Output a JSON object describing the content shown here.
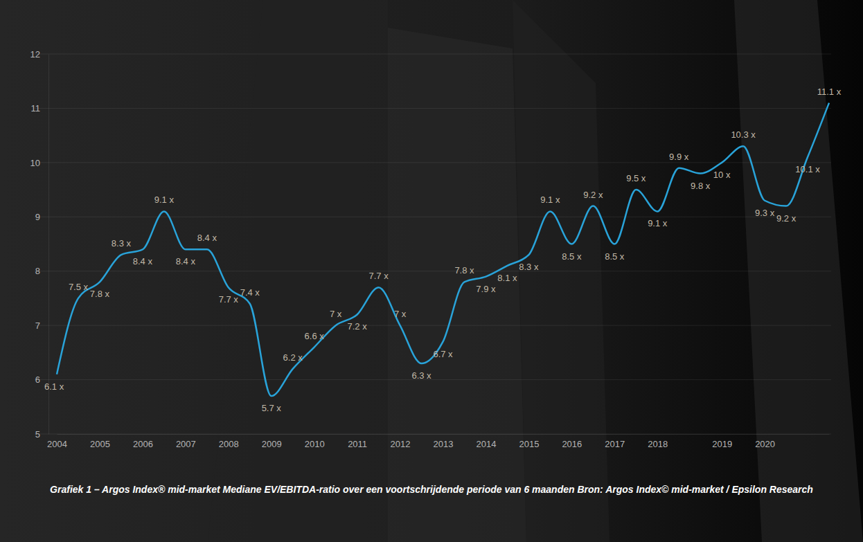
{
  "chart_data": {
    "type": "line",
    "title": "Grafiek 1 – Argos Index® mid-market Mediane EV/EBITDA-ratio over een voortschrijdende periode van 6 maanden Bron: Argos Index© mid-market / Epsilon Research",
    "categories": [
      "2004",
      null,
      "2005",
      null,
      "2006",
      null,
      "2007",
      null,
      "2008",
      null,
      "2009",
      null,
      "2010",
      null,
      "2011",
      null,
      "2012",
      null,
      "2013",
      null,
      "2014",
      null,
      "2015",
      null,
      "2016",
      null,
      "2017",
      null,
      "2018",
      null,
      null,
      "2019",
      null,
      "2020",
      null,
      null,
      null
    ],
    "values": [
      6.1,
      7.5,
      7.8,
      8.3,
      8.4,
      9.1,
      8.4,
      8.4,
      7.7,
      7.4,
      5.7,
      6.2,
      6.6,
      7,
      7.2,
      7.7,
      7,
      6.3,
      6.7,
      7.8,
      7.9,
      8.1,
      8.3,
      9.1,
      8.5,
      9.2,
      8.5,
      9.5,
      9.1,
      9.9,
      9.8,
      10,
      10.3,
      9.3,
      9.2,
      10.1,
      11.1
    ],
    "value_labels": [
      "6.1 x",
      "7.5 x",
      "7.8 x",
      "8.3 x",
      "8.4 x",
      "9.1 x",
      "8.4 x",
      "8.4 x",
      "7.7 x",
      "7.4 x",
      "5.7 x",
      "6.2 x",
      "6.6 x",
      "7 x",
      "7.2 x",
      "7.7 x",
      "7 x",
      "6.3 x",
      "6.7 x",
      "7.8 x",
      "7.9 x",
      "8.1 x",
      "8.3 x",
      "9.1 x",
      "8.5 x",
      "9.2 x",
      "8.5 x",
      "9.5 x",
      "9.1 x",
      "9.9 x",
      "9.8 x",
      "10 x",
      "10.3 x",
      "9.3 x",
      "9.2 x",
      "10.1 x",
      "11.1 x"
    ],
    "color": "#29a3d9",
    "ylim": [
      5,
      12
    ],
    "yticks": [
      5,
      6,
      7,
      8,
      9,
      10,
      11,
      12
    ],
    "grid": true,
    "data_labels": true
  }
}
